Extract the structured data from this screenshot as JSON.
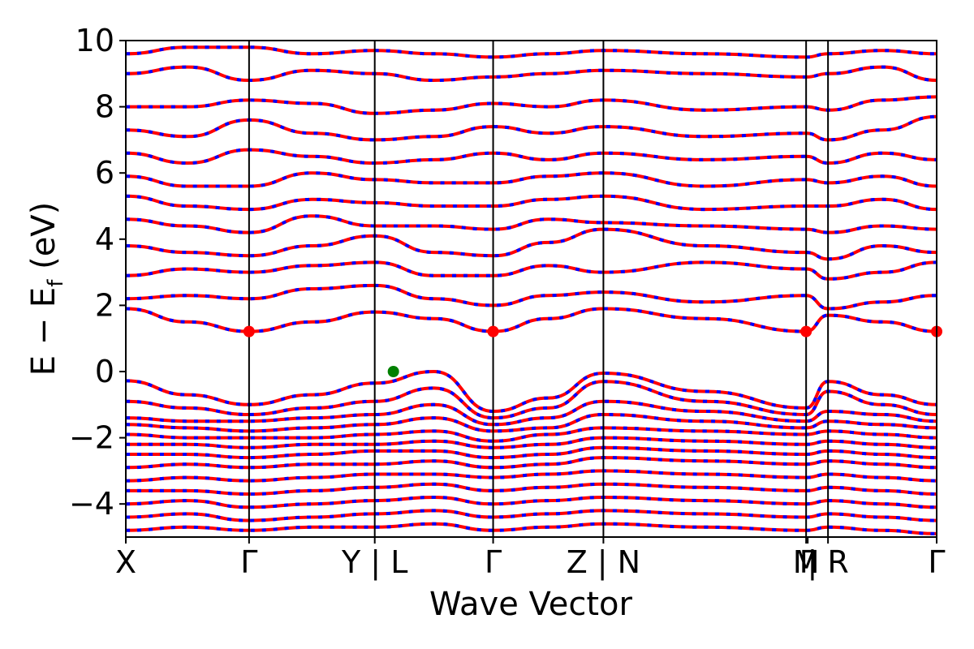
{
  "chart_data": {
    "type": "line",
    "xlabel": "Wave Vector",
    "ylabel_main": "E − E",
    "ylabel_sub": "f",
    "ylabel_unit": " (eV)",
    "ylim": [
      -5,
      10
    ],
    "yticks": [
      -4,
      -2,
      0,
      2,
      4,
      6,
      8,
      10
    ],
    "grid": false,
    "legend": "none",
    "kpath": {
      "ticks": [
        {
          "pos": 0.0,
          "label": "X"
        },
        {
          "pos": 0.152,
          "label": "Γ"
        },
        {
          "pos": 0.307,
          "label": "Y | L"
        },
        {
          "pos": 0.453,
          "label": "Γ"
        },
        {
          "pos": 0.589,
          "label": "Z | N"
        },
        {
          "pos": 0.839,
          "label": "M"
        },
        {
          "pos": 0.841,
          "label": "Γ"
        },
        {
          "pos": 0.866,
          "label": "| R"
        },
        {
          "pos": 1.0,
          "label": "Γ"
        }
      ],
      "label_slots": [
        {
          "pos": 0.0,
          "label_key": 0
        },
        {
          "pos": 0.152,
          "label_key": 1
        },
        {
          "pos": 0.307,
          "label_key": 2
        },
        {
          "pos": 0.453,
          "label_key": 3
        },
        {
          "pos": 0.589,
          "label_key": 4
        },
        {
          "pos": 0.839,
          "label_key": 5
        },
        {
          "pos": 0.841,
          "label_key": 6
        },
        {
          "pos": 0.866,
          "label_key": 7
        },
        {
          "pos": 1.0,
          "label_key": 8
        }
      ],
      "divider_positions": [
        0.152,
        0.307,
        0.453,
        0.589,
        0.839,
        0.866
      ]
    },
    "series": [
      {
        "role": "spin-up",
        "color": "#ff0000",
        "dash": "solid"
      },
      {
        "role": "spin-down",
        "color": "#0000ff",
        "dash": "dashed"
      }
    ],
    "band_edges": {
      "vbm": {
        "x": 0.33,
        "y": 0.0,
        "color": "#008000"
      },
      "cbm": [
        {
          "x": 0.152,
          "y": 1.21,
          "color": "#ff0000"
        },
        {
          "x": 0.453,
          "y": 1.21,
          "color": "#ff0000"
        },
        {
          "x": 0.839,
          "y": 1.21,
          "color": "#ff0000"
        },
        {
          "x": 1.0,
          "y": 1.21,
          "color": "#ff0000"
        }
      ]
    },
    "bands": {
      "k": [
        0.0,
        0.076,
        0.152,
        0.23,
        0.307,
        0.38,
        0.453,
        0.521,
        0.589,
        0.714,
        0.839,
        0.866,
        0.933,
        1.0
      ],
      "valence": [
        [
          -0.28,
          -0.7,
          -1.0,
          -0.7,
          -0.35,
          0.0,
          -1.2,
          -0.8,
          -0.05,
          -0.6,
          -1.1,
          -0.3,
          -0.7,
          -1.0
        ],
        [
          -0.9,
          -1.1,
          -1.3,
          -1.1,
          -0.9,
          -0.5,
          -1.4,
          -1.1,
          -0.3,
          -0.9,
          -1.3,
          -0.6,
          -1.0,
          -1.3
        ],
        [
          -1.4,
          -1.5,
          -1.5,
          -1.4,
          -1.3,
          -1.0,
          -1.6,
          -1.4,
          -0.9,
          -1.2,
          -1.5,
          -1.2,
          -1.3,
          -1.5
        ],
        [
          -1.6,
          -1.7,
          -1.8,
          -1.7,
          -1.6,
          -1.4,
          -1.8,
          -1.7,
          -1.3,
          -1.5,
          -1.7,
          -1.5,
          -1.6,
          -1.7
        ],
        [
          -1.9,
          -2.0,
          -2.0,
          -2.0,
          -1.9,
          -1.8,
          -2.1,
          -1.9,
          -1.7,
          -1.8,
          -1.9,
          -1.8,
          -1.9,
          -2.0
        ],
        [
          -2.2,
          -2.2,
          -2.3,
          -2.2,
          -2.2,
          -2.1,
          -2.3,
          -2.2,
          -2.0,
          -2.1,
          -2.2,
          -2.1,
          -2.2,
          -2.3
        ],
        [
          -2.5,
          -2.5,
          -2.6,
          -2.5,
          -2.4,
          -2.4,
          -2.6,
          -2.5,
          -2.3,
          -2.4,
          -2.5,
          -2.4,
          -2.5,
          -2.6
        ],
        [
          -2.9,
          -2.8,
          -2.9,
          -2.8,
          -2.8,
          -2.7,
          -2.9,
          -2.8,
          -2.6,
          -2.7,
          -2.8,
          -2.7,
          -2.8,
          -2.9
        ],
        [
          -3.3,
          -3.2,
          -3.3,
          -3.2,
          -3.1,
          -3.1,
          -3.2,
          -3.1,
          -3.0,
          -3.1,
          -3.2,
          -3.1,
          -3.2,
          -3.3
        ],
        [
          -3.6,
          -3.6,
          -3.7,
          -3.6,
          -3.5,
          -3.4,
          -3.6,
          -3.5,
          -3.4,
          -3.5,
          -3.6,
          -3.5,
          -3.6,
          -3.7
        ],
        [
          -4.0,
          -3.9,
          -4.1,
          -4.0,
          -3.9,
          -3.8,
          -4.0,
          -3.9,
          -3.8,
          -3.9,
          -4.0,
          -3.9,
          -4.0,
          -4.1
        ],
        [
          -4.4,
          -4.3,
          -4.5,
          -4.4,
          -4.3,
          -4.2,
          -4.4,
          -4.3,
          -4.2,
          -4.3,
          -4.4,
          -4.3,
          -4.4,
          -4.5
        ],
        [
          -4.8,
          -4.7,
          -4.8,
          -4.7,
          -4.7,
          -4.6,
          -4.8,
          -4.7,
          -4.6,
          -4.7,
          -4.8,
          -4.7,
          -4.8,
          -4.9
        ]
      ],
      "conduction": [
        [
          1.9,
          1.5,
          1.21,
          1.5,
          1.8,
          1.6,
          1.21,
          1.6,
          1.9,
          1.6,
          1.21,
          1.7,
          1.5,
          1.21
        ],
        [
          2.2,
          2.3,
          2.2,
          2.5,
          2.6,
          2.2,
          2.0,
          2.3,
          2.4,
          2.1,
          2.3,
          1.9,
          2.1,
          2.3
        ],
        [
          2.9,
          3.1,
          3.0,
          3.2,
          3.3,
          2.9,
          2.9,
          3.2,
          3.0,
          3.3,
          3.1,
          2.8,
          3.0,
          3.3
        ],
        [
          3.8,
          3.6,
          3.5,
          3.8,
          4.1,
          3.6,
          3.5,
          3.9,
          4.3,
          3.8,
          3.6,
          3.4,
          3.8,
          3.6
        ],
        [
          4.6,
          4.4,
          4.2,
          4.7,
          4.4,
          4.4,
          4.3,
          4.6,
          4.5,
          4.4,
          4.3,
          4.2,
          4.4,
          4.3
        ],
        [
          5.3,
          5.0,
          4.9,
          5.2,
          5.1,
          5.0,
          5.0,
          5.2,
          5.3,
          4.9,
          5.0,
          5.0,
          5.2,
          4.9
        ],
        [
          5.9,
          5.6,
          5.6,
          6.0,
          5.8,
          5.7,
          5.7,
          5.9,
          6.0,
          5.6,
          5.8,
          5.7,
          5.9,
          5.6
        ],
        [
          6.6,
          6.3,
          6.7,
          6.5,
          6.3,
          6.4,
          6.6,
          6.4,
          6.6,
          6.4,
          6.5,
          6.3,
          6.6,
          6.4
        ],
        [
          7.3,
          7.1,
          7.6,
          7.2,
          7.0,
          7.1,
          7.4,
          7.2,
          7.4,
          7.1,
          7.2,
          7.0,
          7.3,
          7.7
        ],
        [
          8.0,
          8.0,
          8.2,
          8.1,
          7.8,
          7.9,
          8.1,
          8.0,
          8.2,
          7.9,
          8.0,
          7.9,
          8.2,
          8.3
        ],
        [
          9.0,
          9.2,
          8.8,
          9.1,
          9.0,
          8.8,
          8.9,
          9.0,
          9.1,
          9.0,
          8.9,
          9.0,
          9.2,
          8.8
        ],
        [
          9.6,
          9.8,
          9.8,
          9.6,
          9.7,
          9.6,
          9.5,
          9.6,
          9.7,
          9.6,
          9.5,
          9.6,
          9.7,
          9.6
        ]
      ]
    }
  }
}
